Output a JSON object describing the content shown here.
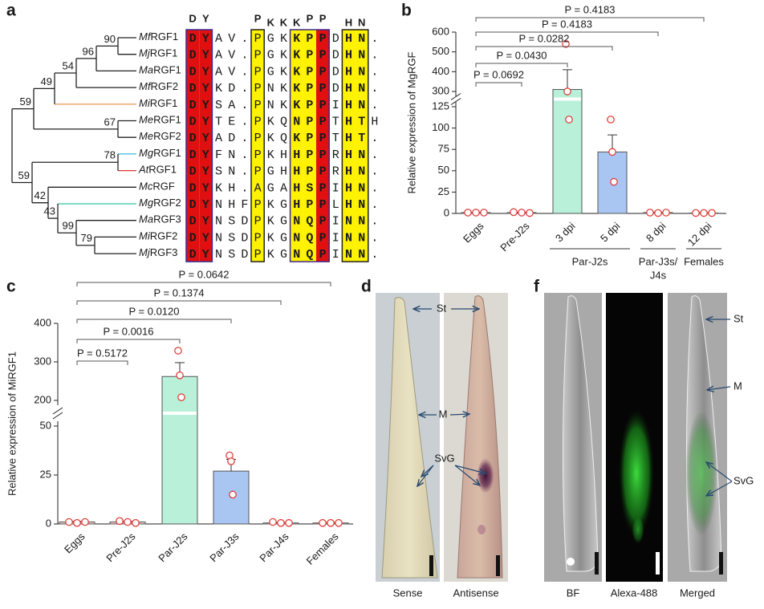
{
  "panel_labels": [
    "a",
    "b",
    "c",
    "d",
    "f"
  ],
  "tree": {
    "leaves": [
      {
        "species": "Mf",
        "gene": "RGF1"
      },
      {
        "species": "Mj",
        "gene": "RGF1"
      },
      {
        "species": "Ma",
        "gene": "RGF1"
      },
      {
        "species": "Mf",
        "gene": "RGF2"
      },
      {
        "species": "Mi",
        "gene": "RGF1"
      },
      {
        "species": "Me",
        "gene": "RGF1"
      },
      {
        "species": "Me",
        "gene": "RGF2"
      },
      {
        "species": "Mg",
        "gene": "RGF1"
      },
      {
        "species": "At",
        "gene": "RGF1"
      },
      {
        "species": "Mc",
        "gene": "RGF"
      },
      {
        "species": "Mg",
        "gene": "RGF2"
      },
      {
        "species": "Ma",
        "gene": "RGF3"
      },
      {
        "species": "Mi",
        "gene": "RGF2"
      },
      {
        "species": "Mj",
        "gene": "RGF3"
      }
    ],
    "bootstrap": [
      90,
      96,
      54,
      49,
      59,
      67,
      78,
      59,
      42,
      43,
      99,
      79
    ]
  },
  "alignment": {
    "logo": [
      "D",
      "Y",
      "P",
      "K",
      "K",
      "K",
      "P",
      "P",
      "H",
      "N"
    ],
    "rows": [
      [
        "D",
        "Y",
        "A",
        "V",
        ".",
        "P",
        "G",
        "K",
        "K",
        "P",
        "P",
        "D",
        "H",
        "N",
        "."
      ],
      [
        "D",
        "Y",
        "A",
        "V",
        ".",
        "P",
        "G",
        "K",
        "K",
        "P",
        "P",
        "D",
        "H",
        "N",
        "."
      ],
      [
        "D",
        "Y",
        "A",
        "V",
        ".",
        "P",
        "G",
        "K",
        "K",
        "P",
        "P",
        "D",
        "H",
        "N",
        "."
      ],
      [
        "D",
        "Y",
        "K",
        "D",
        ".",
        "P",
        "N",
        "K",
        "K",
        "P",
        "P",
        "D",
        "H",
        "N",
        "."
      ],
      [
        "D",
        "Y",
        "S",
        "A",
        ".",
        "P",
        "N",
        "K",
        "K",
        "P",
        "P",
        "I",
        "H",
        "N",
        "."
      ],
      [
        "D",
        "Y",
        "T",
        "E",
        ".",
        "P",
        "K",
        "Q",
        "N",
        "P",
        "P",
        "T",
        "H",
        "T",
        "H"
      ],
      [
        "D",
        "Y",
        "A",
        "D",
        ".",
        "P",
        "K",
        "Q",
        "K",
        "P",
        "P",
        "T",
        "H",
        "T",
        "."
      ],
      [
        "D",
        "Y",
        "F",
        "N",
        ".",
        "P",
        "K",
        "H",
        "H",
        "P",
        "P",
        "R",
        "H",
        "N",
        "."
      ],
      [
        "D",
        "Y",
        "S",
        "N",
        ".",
        "P",
        "G",
        "H",
        "H",
        "P",
        "P",
        "R",
        "H",
        "N",
        "."
      ],
      [
        "D",
        "Y",
        "K",
        "H",
        ".",
        "A",
        "G",
        "A",
        "H",
        "S",
        "P",
        "I",
        "H",
        "N",
        "."
      ],
      [
        "D",
        "Y",
        "N",
        "H",
        "F",
        "P",
        "K",
        "G",
        "H",
        "P",
        "P",
        "L",
        "H",
        "N",
        "."
      ],
      [
        "D",
        "Y",
        "N",
        "S",
        "D",
        "P",
        "K",
        "G",
        "N",
        "Q",
        "P",
        "I",
        "N",
        "N",
        "."
      ],
      [
        "D",
        "Y",
        "N",
        "S",
        "D",
        "P",
        "K",
        "G",
        "N",
        "Q",
        "P",
        "I",
        "N",
        "N",
        "."
      ],
      [
        "D",
        "Y",
        "N",
        "S",
        "D",
        "P",
        "K",
        "G",
        "N",
        "Q",
        "P",
        "I",
        "N",
        "N",
        "."
      ]
    ]
  },
  "chart_data": [
    {
      "type": "bar",
      "ylabel": "Relative expression of MgRGF",
      "categories": [
        "Eggs",
        "Pre-J2s",
        "3 dpi",
        "5 dpi",
        "8 dpi",
        "12 dpi"
      ],
      "values": [
        1,
        1,
        310,
        72,
        1,
        0.5
      ],
      "errors": [
        0.3,
        0.5,
        100,
        20,
        0.5,
        0.3
      ],
      "points": [
        [
          1,
          1,
          1
        ],
        [
          1.5,
          1,
          0.5
        ],
        [
          540,
          300,
          110
        ],
        [
          110,
          72,
          37
        ],
        [
          1,
          0.5,
          1
        ],
        [
          0.5,
          0.5,
          0.5
        ]
      ],
      "colors": [
        "#f6caca",
        "#f6caca",
        "#b8f0da",
        "#a9c6f2",
        "#f6caca",
        "#f6caca"
      ],
      "point_color": "#e0403a",
      "ylim": [
        0,
        600
      ],
      "ybreak": [
        125,
        300
      ],
      "yticks": [
        0,
        25,
        50,
        75,
        100,
        125,
        300,
        400,
        500,
        600
      ],
      "comparisons": [
        {
          "label": "P = 0.0692",
          "from": "Eggs",
          "to": "Pre-J2s"
        },
        {
          "label": "P = 0.0430",
          "from": "Eggs",
          "to": "3 dpi"
        },
        {
          "label": "P = 0.0282",
          "from": "Eggs",
          "to": "5 dpi"
        },
        {
          "label": "P = 0.4183",
          "from": "Eggs",
          "to": "8 dpi"
        },
        {
          "label": "P = 0.4183",
          "from": "Eggs",
          "to": "12 dpi"
        }
      ],
      "groups": [
        {
          "lines": [
            "Par-J2s"
          ],
          "categories": [
            "3 dpi",
            "5 dpi"
          ]
        },
        {
          "lines": [
            "Par-J3s/",
            "J4s"
          ],
          "categories": [
            "8 dpi"
          ]
        },
        {
          "lines": [
            "Females"
          ],
          "categories": [
            "12 dpi"
          ]
        }
      ]
    },
    {
      "type": "bar",
      "ylabel": "Relative expression of MiRGF1",
      "categories": [
        "Eggs",
        "Pre-J2s",
        "Par-J2s",
        "Par-J3s",
        "Par-J4s",
        "Females"
      ],
      "values": [
        1,
        1,
        262,
        27,
        0.5,
        0.5
      ],
      "errors": [
        0.3,
        0.3,
        36,
        6,
        0.3,
        0.3
      ],
      "points": [
        [
          1,
          0.5,
          1
        ],
        [
          1.5,
          1,
          0.5
        ],
        [
          329,
          265,
          208
        ],
        [
          35,
          32,
          15
        ],
        [
          1,
          0.5,
          0.5
        ],
        [
          0.5,
          0.5,
          0.5
        ]
      ],
      "colors": [
        "#f6caca",
        "#f6caca",
        "#b8f0da",
        "#a9c6f2",
        "#f6caca",
        "#f6caca"
      ],
      "point_color": "#e0403a",
      "ylim": [
        0,
        400
      ],
      "ybreak": [
        50,
        200
      ],
      "yticks": [
        0,
        25,
        50,
        200,
        300,
        400
      ],
      "comparisons": [
        {
          "label": "P = 0.5172",
          "from": "Eggs",
          "to": "Pre-J2s"
        },
        {
          "label": "P = 0.0016",
          "from": "Eggs",
          "to": "Par-J2s"
        },
        {
          "label": "P = 0.0120",
          "from": "Eggs",
          "to": "Par-J3s"
        },
        {
          "label": "P = 0.1374",
          "from": "Eggs",
          "to": "Par-J4s"
        },
        {
          "label": "P = 0.0642",
          "from": "Eggs",
          "to": "Females"
        }
      ]
    }
  ],
  "micrographs": {
    "d": {
      "images": [
        "Sense",
        "Antisense"
      ],
      "annotations": [
        "St",
        "M",
        "SvG"
      ]
    },
    "f": {
      "images": [
        "BF",
        "Alexa-488",
        "Merged"
      ],
      "annotations": [
        "St",
        "M",
        "SvG"
      ]
    }
  }
}
